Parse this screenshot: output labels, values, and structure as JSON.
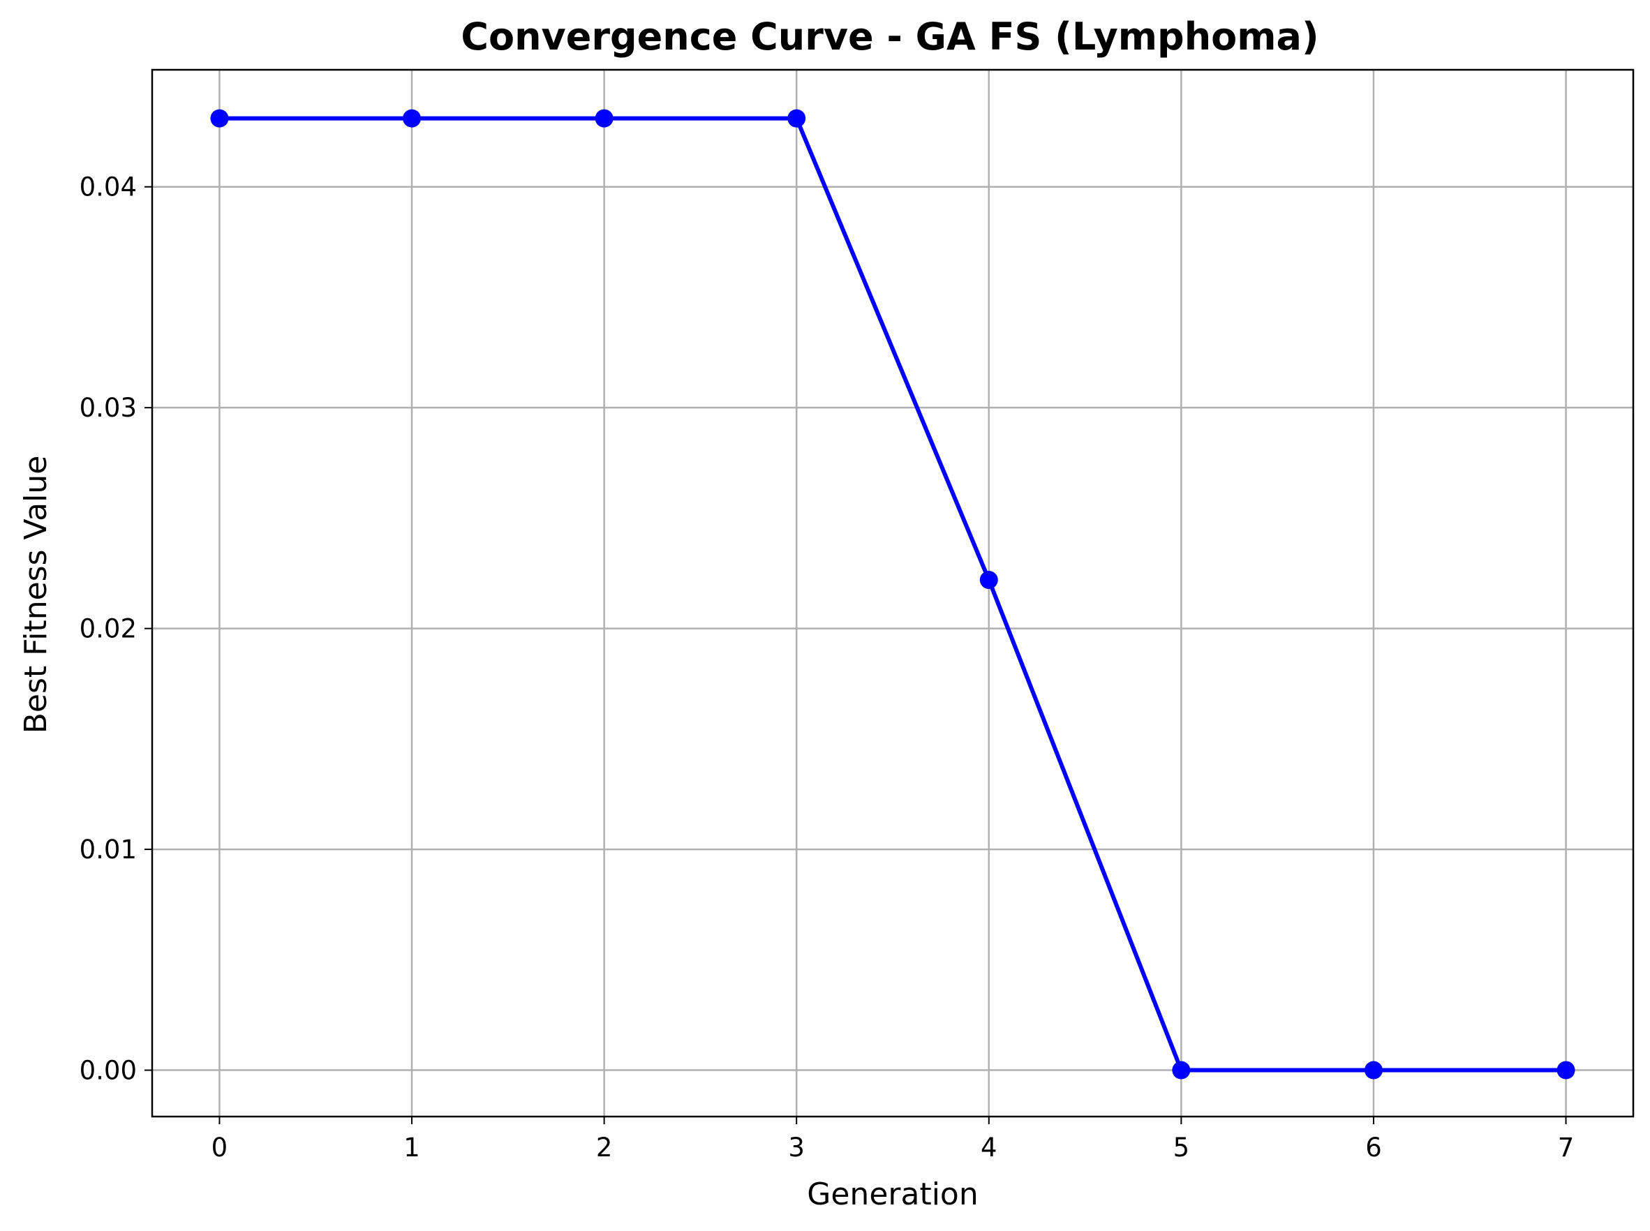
{
  "chart_data": {
    "type": "line",
    "title": "Convergence Curve - GA FS (Lymphoma)",
    "xlabel": "Generation",
    "ylabel": "Best Fitness Value",
    "x": [
      0,
      1,
      2,
      3,
      4,
      5,
      6,
      7
    ],
    "series": [
      {
        "values": [
          0.0431,
          0.0431,
          0.0431,
          0.0431,
          0.0222,
          0.0,
          0.0,
          0.0
        ],
        "color": "#0000ff",
        "marker": "circle"
      }
    ],
    "xlim": [
      -0.35,
      7.35
    ],
    "ylim": [
      -0.0021,
      0.0453
    ],
    "xticks": [
      0,
      1,
      2,
      3,
      4,
      5,
      6,
      7
    ],
    "xtick_labels": [
      "0",
      "1",
      "2",
      "3",
      "4",
      "5",
      "6",
      "7"
    ],
    "yticks": [
      0.0,
      0.01,
      0.02,
      0.03,
      0.04
    ],
    "ytick_labels": [
      "0.00",
      "0.01",
      "0.02",
      "0.03",
      "0.04"
    ],
    "grid": true,
    "grid_color": "#b0b0b0",
    "legend": "none"
  }
}
